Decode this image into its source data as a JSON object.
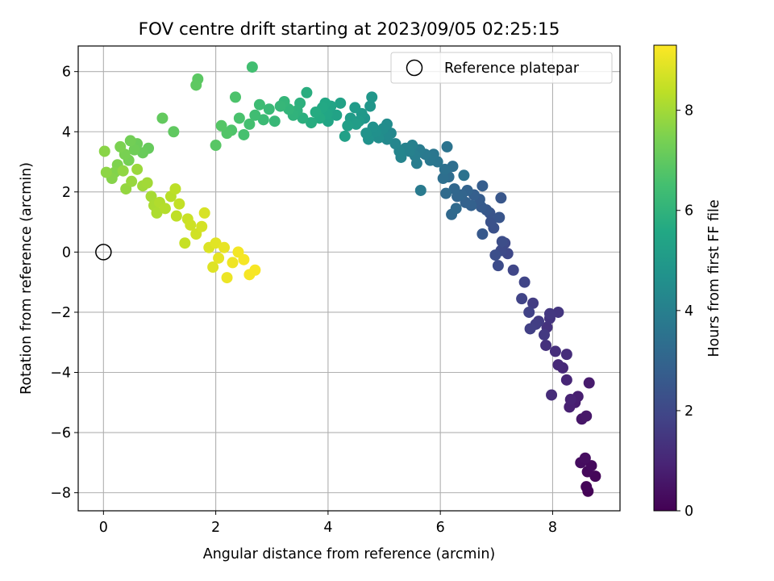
{
  "chart_data": {
    "type": "scatter",
    "title": "FOV centre drift starting at 2023/09/05 02:25:15",
    "xlabel": "Angular distance from reference (arcmin)",
    "ylabel": "Rotation from reference (arcmin)",
    "xlim": [
      -0.45,
      9.2
    ],
    "ylim": [
      -8.6,
      6.85
    ],
    "xticks": [
      0,
      2,
      4,
      6,
      8
    ],
    "yticks": [
      -8,
      -6,
      -4,
      -2,
      0,
      2,
      4,
      6
    ],
    "grid": true,
    "legend": {
      "placement": "top-right",
      "entries": [
        {
          "label": "Reference platepar",
          "marker": "open-circle"
        }
      ]
    },
    "reference_point": {
      "x": 0,
      "y": 0
    },
    "colorbar": {
      "label": "Hours from first FF file",
      "range": [
        0,
        9.3
      ],
      "ticks": [
        0,
        2,
        4,
        6,
        8
      ],
      "colormap": "viridis"
    },
    "points": [
      [
        8.63,
        -7.95,
        0.05
      ],
      [
        8.6,
        -7.8,
        0.1
      ],
      [
        8.76,
        -7.45,
        0.15
      ],
      [
        8.62,
        -7.3,
        0.2
      ],
      [
        8.69,
        -7.1,
        0.25
      ],
      [
        8.5,
        -7.0,
        0.3
      ],
      [
        8.58,
        -6.85,
        0.35
      ],
      [
        8.52,
        -5.55,
        0.55
      ],
      [
        8.6,
        -5.45,
        0.6
      ],
      [
        8.65,
        -4.35,
        0.7
      ],
      [
        8.4,
        -5.0,
        0.75
      ],
      [
        8.45,
        -4.8,
        0.8
      ],
      [
        8.3,
        -5.15,
        0.85
      ],
      [
        8.32,
        -4.9,
        0.9
      ],
      [
        8.25,
        -4.25,
        1.0
      ],
      [
        8.18,
        -3.85,
        1.05
      ],
      [
        8.1,
        -3.75,
        1.1
      ],
      [
        7.98,
        -4.75,
        1.15
      ],
      [
        8.25,
        -3.4,
        1.2
      ],
      [
        8.05,
        -3.3,
        1.25
      ],
      [
        7.88,
        -3.1,
        1.3
      ],
      [
        7.9,
        -2.5,
        1.35
      ],
      [
        7.95,
        -2.2,
        1.4
      ],
      [
        8.1,
        -2.0,
        1.45
      ],
      [
        7.95,
        -2.05,
        1.5
      ],
      [
        7.85,
        -2.75,
        1.55
      ],
      [
        7.75,
        -2.3,
        1.6
      ],
      [
        7.65,
        -1.7,
        1.65
      ],
      [
        7.7,
        -2.4,
        1.7
      ],
      [
        7.6,
        -2.55,
        1.75
      ],
      [
        7.58,
        -2.0,
        1.8
      ],
      [
        7.45,
        -1.55,
        1.85
      ],
      [
        7.5,
        -1.0,
        1.9
      ],
      [
        7.3,
        -0.6,
        1.95
      ],
      [
        7.2,
        -0.05,
        2.0
      ],
      [
        7.15,
        0.3,
        2.05
      ],
      [
        7.08,
        0.05,
        2.1
      ],
      [
        7.03,
        -0.45,
        2.15
      ],
      [
        7.1,
        0.35,
        2.2
      ],
      [
        6.98,
        -0.1,
        2.25
      ],
      [
        6.95,
        0.8,
        2.3
      ],
      [
        6.9,
        1.0,
        2.35
      ],
      [
        6.88,
        1.3,
        2.4
      ],
      [
        7.05,
        1.15,
        2.45
      ],
      [
        7.08,
        1.8,
        2.5
      ],
      [
        6.82,
        1.4,
        2.55
      ],
      [
        6.75,
        0.6,
        2.6
      ],
      [
        6.73,
        1.5,
        2.65
      ],
      [
        6.7,
        1.75,
        2.7
      ],
      [
        6.75,
        2.2,
        2.75
      ],
      [
        6.6,
        1.9,
        2.8
      ],
      [
        6.55,
        1.55,
        2.85
      ],
      [
        6.45,
        1.65,
        2.9
      ],
      [
        6.48,
        2.05,
        2.95
      ],
      [
        6.38,
        1.9,
        3.0
      ],
      [
        6.3,
        1.85,
        3.05
      ],
      [
        6.25,
        2.1,
        3.1
      ],
      [
        6.2,
        1.25,
        3.15
      ],
      [
        6.28,
        1.45,
        3.2
      ],
      [
        6.1,
        1.95,
        3.25
      ],
      [
        6.15,
        2.5,
        3.3
      ],
      [
        6.22,
        2.85,
        3.35
      ],
      [
        6.05,
        2.45,
        3.4
      ],
      [
        6.08,
        2.75,
        3.45
      ],
      [
        6.42,
        2.55,
        3.5
      ],
      [
        6.12,
        3.5,
        3.55
      ],
      [
        5.95,
        3.0,
        3.6
      ],
      [
        5.88,
        3.25,
        3.65
      ],
      [
        5.82,
        3.05,
        3.7
      ],
      [
        5.73,
        3.25,
        3.75
      ],
      [
        5.65,
        2.05,
        3.8
      ],
      [
        5.63,
        3.4,
        3.85
      ],
      [
        5.58,
        2.95,
        3.9
      ],
      [
        5.55,
        3.2,
        3.95
      ],
      [
        5.5,
        3.55,
        4.0
      ],
      [
        5.45,
        3.35,
        4.05
      ],
      [
        5.38,
        3.45,
        4.1
      ],
      [
        5.3,
        3.15,
        4.15
      ],
      [
        5.27,
        3.35,
        4.2
      ],
      [
        5.2,
        3.6,
        4.25
      ],
      [
        5.12,
        3.95,
        4.3
      ],
      [
        5.05,
        3.75,
        4.35
      ],
      [
        5.02,
        3.9,
        4.4
      ],
      [
        5.05,
        4.25,
        4.45
      ],
      [
        4.98,
        4.1,
        4.5
      ],
      [
        4.9,
        3.8,
        4.55
      ],
      [
        4.85,
        4.0,
        4.6
      ],
      [
        4.8,
        4.15,
        4.65
      ],
      [
        4.72,
        3.75,
        4.7
      ],
      [
        4.68,
        3.95,
        4.75
      ],
      [
        4.65,
        4.45,
        4.8
      ],
      [
        4.75,
        4.85,
        4.85
      ],
      [
        4.78,
        5.15,
        4.9
      ],
      [
        4.6,
        4.6,
        4.95
      ],
      [
        4.55,
        4.35,
        5.0
      ],
      [
        4.48,
        4.8,
        5.05
      ],
      [
        4.4,
        4.45,
        5.1
      ],
      [
        4.5,
        4.25,
        5.15
      ],
      [
        4.35,
        4.2,
        5.2
      ],
      [
        4.3,
        3.85,
        5.25
      ],
      [
        4.22,
        4.95,
        5.3
      ],
      [
        4.15,
        4.55,
        5.35
      ],
      [
        4.05,
        4.85,
        5.4
      ],
      [
        4.0,
        4.35,
        5.45
      ],
      [
        3.98,
        4.6,
        5.5
      ],
      [
        3.95,
        4.95,
        5.55
      ],
      [
        3.9,
        4.8,
        5.6
      ],
      [
        3.85,
        4.45,
        5.65
      ],
      [
        3.78,
        4.65,
        5.7
      ],
      [
        3.7,
        4.3,
        5.75
      ],
      [
        3.62,
        5.3,
        5.8
      ],
      [
        3.55,
        4.45,
        5.85
      ],
      [
        3.5,
        4.95,
        5.9
      ],
      [
        3.45,
        4.7,
        5.95
      ],
      [
        3.38,
        4.55,
        6.0
      ],
      [
        3.3,
        4.75,
        6.05
      ],
      [
        3.22,
        5.0,
        6.1
      ],
      [
        3.15,
        4.85,
        6.15
      ],
      [
        3.05,
        4.35,
        6.2
      ],
      [
        2.95,
        4.75,
        6.25
      ],
      [
        2.85,
        4.4,
        6.3
      ],
      [
        2.78,
        4.9,
        6.35
      ],
      [
        2.7,
        4.55,
        6.4
      ],
      [
        2.65,
        6.15,
        6.45
      ],
      [
        2.6,
        4.25,
        6.5
      ],
      [
        2.5,
        3.9,
        6.55
      ],
      [
        2.42,
        4.45,
        6.6
      ],
      [
        2.35,
        5.15,
        6.65
      ],
      [
        2.28,
        4.05,
        6.7
      ],
      [
        2.2,
        3.95,
        6.75
      ],
      [
        2.1,
        4.2,
        6.8
      ],
      [
        2.0,
        3.55,
        6.85
      ],
      [
        1.68,
        5.75,
        6.9
      ],
      [
        1.65,
        5.55,
        6.95
      ],
      [
        1.25,
        4.0,
        7.0
      ],
      [
        1.05,
        4.45,
        7.05
      ],
      [
        0.8,
        3.45,
        7.1
      ],
      [
        0.7,
        3.3,
        7.15
      ],
      [
        0.6,
        3.6,
        7.2
      ],
      [
        0.55,
        3.4,
        7.25
      ],
      [
        0.48,
        3.7,
        7.3
      ],
      [
        0.45,
        3.05,
        7.35
      ],
      [
        0.38,
        3.25,
        7.4
      ],
      [
        0.3,
        3.5,
        7.45
      ],
      [
        0.25,
        2.9,
        7.5
      ],
      [
        0.2,
        2.65,
        7.55
      ],
      [
        0.15,
        2.45,
        7.6
      ],
      [
        0.02,
        3.35,
        7.65
      ],
      [
        0.05,
        2.65,
        7.7
      ],
      [
        0.35,
        2.7,
        7.75
      ],
      [
        0.4,
        2.1,
        7.8
      ],
      [
        0.5,
        2.35,
        7.85
      ],
      [
        0.6,
        2.75,
        7.9
      ],
      [
        0.7,
        2.2,
        7.95
      ],
      [
        0.78,
        2.3,
        8.0
      ],
      [
        0.85,
        1.85,
        8.05
      ],
      [
        0.9,
        1.55,
        8.1
      ],
      [
        0.95,
        1.3,
        8.15
      ],
      [
        1.0,
        1.65,
        8.2
      ],
      [
        1.1,
        1.45,
        8.25
      ],
      [
        1.2,
        1.85,
        8.3
      ],
      [
        1.28,
        2.1,
        8.35
      ],
      [
        1.3,
        1.2,
        8.4
      ],
      [
        1.35,
        1.6,
        8.45
      ],
      [
        1.45,
        0.3,
        8.5
      ],
      [
        1.5,
        1.1,
        8.55
      ],
      [
        1.55,
        0.9,
        8.6
      ],
      [
        1.65,
        0.6,
        8.65
      ],
      [
        1.75,
        0.85,
        8.7
      ],
      [
        1.8,
        1.3,
        8.75
      ],
      [
        1.88,
        0.15,
        8.8
      ],
      [
        1.95,
        -0.5,
        8.85
      ],
      [
        2.0,
        0.3,
        8.9
      ],
      [
        2.05,
        -0.2,
        8.95
      ],
      [
        2.15,
        0.15,
        9.0
      ],
      [
        2.2,
        -0.85,
        9.05
      ],
      [
        2.3,
        -0.35,
        9.1
      ],
      [
        2.4,
        0.0,
        9.15
      ],
      [
        2.5,
        -0.25,
        9.18
      ],
      [
        2.6,
        -0.75,
        9.2
      ],
      [
        2.7,
        -0.6,
        9.22
      ]
    ]
  }
}
